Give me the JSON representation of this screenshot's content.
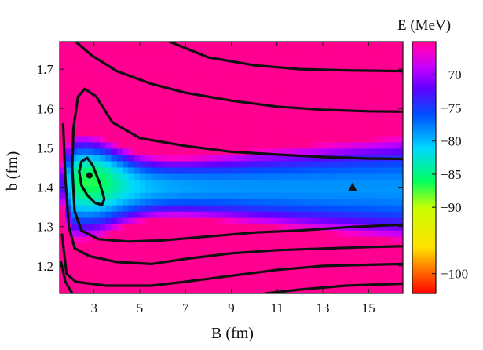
{
  "chart_data": {
    "type": "heatmap",
    "title": "",
    "xlabel": "B (fm)",
    "ylabel": "b (fm)",
    "xlim": [
      1.5,
      16.5
    ],
    "ylim": [
      1.13,
      1.77
    ],
    "x_ticks": [
      3,
      5,
      7,
      9,
      11,
      13,
      15
    ],
    "y_ticks": [
      1.2,
      1.3,
      1.4,
      1.5,
      1.6,
      1.7
    ],
    "colorbar": {
      "label": "E (MeV)",
      "range": [
        -103,
        -65
      ],
      "ticks": [
        -70,
        -75,
        -80,
        -85,
        -90,
        -100
      ],
      "colormap": [
        {
          "value": -103,
          "color": "#ff0000"
        },
        {
          "value": -96,
          "color": "#ffe000"
        },
        {
          "value": -90,
          "color": "#c8ff00"
        },
        {
          "value": -86,
          "color": "#00ff60"
        },
        {
          "value": -81,
          "color": "#00d8ff"
        },
        {
          "value": -76,
          "color": "#0050ff"
        },
        {
          "value": -72,
          "color": "#6000ff"
        },
        {
          "value": -69,
          "color": "#c000ff"
        },
        {
          "value": -66,
          "color": "#ff00c0"
        },
        {
          "value": -65,
          "color": "#ff0090"
        }
      ]
    },
    "minimum_point": {
      "B": 2.8,
      "b": 1.43,
      "marker": "circle"
    },
    "triangle_point": {
      "B": 14.3,
      "b": 1.4,
      "marker": "triangle"
    },
    "contour_levels": [
      -85,
      -80,
      -75,
      -70
    ]
  }
}
